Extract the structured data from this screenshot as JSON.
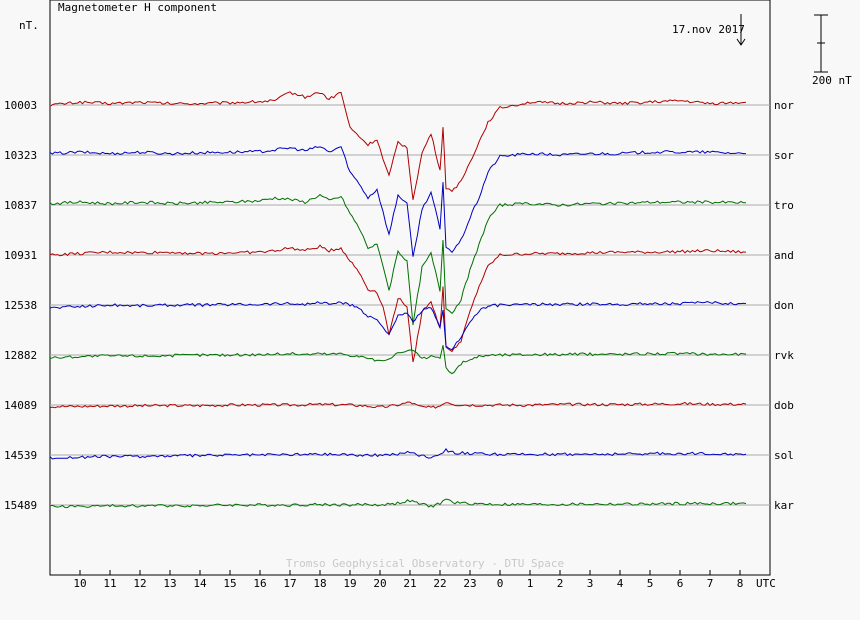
{
  "chart_data": {
    "type": "line",
    "title": "Magnetometer H component",
    "ylabel": "nT.",
    "xlabel": "UTC",
    "date": "17.nov 2017",
    "scale_label": "200 nT",
    "scale_nT": 200,
    "watermark": "Tromso Geophysical Observatory - DTU Space",
    "x_ticks": [
      "10",
      "11",
      "12",
      "13",
      "14",
      "15",
      "16",
      "17",
      "18",
      "19",
      "20",
      "21",
      "22",
      "23",
      "0",
      "1",
      "2",
      "3",
      "4",
      "5",
      "6",
      "7",
      "8"
    ],
    "grid": "horizontal baselines only",
    "series": [
      {
        "name": "nor",
        "baseline": "10003",
        "color": "#b00000",
        "x": [
          9,
          10,
          11,
          12,
          13,
          14,
          15,
          16,
          16.5,
          17,
          17.5,
          18,
          18.3,
          18.7,
          19,
          19.3,
          19.6,
          19.9,
          20.1,
          20.3,
          20.6,
          20.9,
          21.1,
          21.4,
          21.7,
          22,
          22.1,
          22.2,
          22.4,
          22.7,
          23,
          23.3,
          23.6,
          24,
          25,
          26,
          27,
          28,
          29,
          30,
          31,
          32.2
        ],
        "y": [
          0,
          10,
          5,
          10,
          5,
          5,
          8,
          12,
          15,
          45,
          28,
          45,
          20,
          45,
          -80,
          -110,
          -140,
          -120,
          -190,
          -250,
          -130,
          -150,
          -330,
          -170,
          -100,
          -230,
          -80,
          -290,
          -300,
          -270,
          -200,
          -130,
          -60,
          -10,
          10,
          5,
          10,
          5,
          10,
          15,
          5,
          10
        ]
      },
      {
        "name": "sor",
        "baseline": "10323",
        "color": "#0000c0",
        "x": [
          9,
          10,
          11,
          12,
          13,
          14,
          15,
          16,
          16.5,
          17,
          17.5,
          18,
          18.3,
          18.7,
          19,
          19.3,
          19.6,
          19.9,
          20.1,
          20.3,
          20.6,
          20.9,
          21.1,
          21.4,
          21.7,
          22,
          22.1,
          22.2,
          22.4,
          22.7,
          23,
          23.3,
          23.6,
          24,
          25,
          26,
          27,
          28,
          29,
          30,
          31,
          32.2
        ],
        "y": [
          5,
          10,
          5,
          10,
          5,
          8,
          10,
          12,
          18,
          25,
          15,
          30,
          10,
          30,
          -60,
          -100,
          -150,
          -120,
          -200,
          -280,
          -140,
          -170,
          -360,
          -190,
          -130,
          -260,
          -100,
          -320,
          -340,
          -300,
          -220,
          -150,
          -60,
          -5,
          5,
          0,
          5,
          5,
          10,
          10,
          10,
          5
        ]
      },
      {
        "name": "tro",
        "baseline": "10837",
        "color": "#007000",
        "x": [
          9,
          10,
          11,
          12,
          13,
          14,
          15,
          16,
          16.5,
          17,
          17.5,
          18,
          18.3,
          18.7,
          19,
          19.3,
          19.6,
          19.9,
          20.1,
          20.3,
          20.6,
          20.9,
          21.1,
          21.4,
          21.7,
          22,
          22.1,
          22.2,
          22.4,
          22.7,
          23,
          23.3,
          23.6,
          24,
          25,
          26,
          27,
          28,
          29,
          30,
          31,
          32.2
        ],
        "y": [
          5,
          10,
          5,
          10,
          5,
          8,
          10,
          15,
          25,
          20,
          10,
          35,
          15,
          30,
          -30,
          -80,
          -150,
          -140,
          -210,
          -300,
          -160,
          -200,
          -420,
          -220,
          -170,
          -300,
          -120,
          -360,
          -380,
          -330,
          -230,
          -140,
          -50,
          0,
          5,
          0,
          5,
          5,
          10,
          10,
          10,
          8
        ]
      },
      {
        "name": "and",
        "baseline": "10931",
        "color": "#b00000",
        "x": [
          9,
          10,
          11,
          12,
          13,
          14,
          15,
          16,
          16.5,
          17,
          17.5,
          18,
          18.3,
          18.7,
          19,
          19.3,
          19.6,
          19.9,
          20.1,
          20.3,
          20.6,
          20.9,
          21.1,
          21.4,
          21.7,
          22,
          22.1,
          22.2,
          22.4,
          22.7,
          23,
          23.3,
          23.6,
          24,
          25,
          26,
          27,
          28,
          29,
          30,
          31,
          32.2
        ],
        "y": [
          0,
          5,
          10,
          8,
          10,
          5,
          8,
          10,
          15,
          25,
          15,
          30,
          15,
          25,
          -20,
          -60,
          -120,
          -130,
          -180,
          -280,
          -150,
          -180,
          -380,
          -200,
          -160,
          -260,
          -110,
          -320,
          -340,
          -300,
          -200,
          -110,
          -40,
          0,
          5,
          5,
          8,
          10,
          10,
          12,
          15,
          10
        ]
      },
      {
        "name": "don",
        "baseline": "12538",
        "color": "#0000c0",
        "x": [
          9,
          10,
          11,
          12,
          13,
          14,
          15,
          16,
          16.5,
          17,
          17.5,
          18,
          18.3,
          18.7,
          19,
          19.3,
          19.6,
          19.9,
          20.1,
          20.3,
          20.6,
          20.9,
          21.1,
          21.4,
          21.7,
          22,
          22.1,
          22.2,
          22.4,
          22.7,
          23,
          23.3,
          23.6,
          24,
          25,
          26,
          27,
          28,
          29,
          30,
          31,
          32.2
        ],
        "y": [
          -10,
          -5,
          0,
          -2,
          0,
          0,
          2,
          3,
          5,
          5,
          3,
          8,
          5,
          8,
          0,
          -10,
          -40,
          -50,
          -80,
          -100,
          -40,
          -30,
          -60,
          -20,
          -10,
          -80,
          -20,
          -140,
          -160,
          -110,
          -60,
          -20,
          -5,
          0,
          2,
          2,
          3,
          3,
          5,
          5,
          8,
          5
        ]
      },
      {
        "name": "rvk",
        "baseline": "12882",
        "color": "#007000",
        "x": [
          9,
          10,
          11,
          12,
          13,
          14,
          15,
          16,
          16.5,
          17,
          17.5,
          18,
          18.3,
          18.7,
          19,
          19.3,
          19.6,
          19.9,
          20.1,
          20.3,
          20.6,
          20.9,
          21.1,
          21.4,
          21.7,
          22,
          22.1,
          22.2,
          22.4,
          22.7,
          23,
          23.3,
          23.6,
          24,
          25,
          26,
          27,
          28,
          29,
          30,
          31,
          32.2
        ],
        "y": [
          -10,
          -5,
          -3,
          -3,
          -2,
          0,
          0,
          2,
          3,
          5,
          2,
          5,
          3,
          5,
          0,
          -5,
          -10,
          -20,
          -25,
          -10,
          5,
          10,
          20,
          -15,
          -5,
          -10,
          30,
          -40,
          -70,
          -30,
          -15,
          -5,
          0,
          0,
          2,
          2,
          3,
          3,
          5,
          5,
          3,
          3
        ]
      },
      {
        "name": "dob",
        "baseline": "14089",
        "color": "#b00000",
        "x": [
          9,
          10,
          11,
          12,
          13,
          14,
          15,
          16,
          17,
          18,
          19,
          19.5,
          20,
          20.5,
          21,
          21.3,
          21.7,
          22,
          22.2,
          22.5,
          23,
          24,
          25,
          26,
          27,
          28,
          29,
          30,
          31,
          32.2
        ],
        "y": [
          -5,
          -5,
          -3,
          -3,
          -2,
          -2,
          0,
          0,
          0,
          2,
          0,
          -3,
          -8,
          -2,
          10,
          -5,
          -10,
          -3,
          12,
          2,
          0,
          0,
          0,
          2,
          2,
          2,
          3,
          5,
          3,
          3
        ]
      },
      {
        "name": "sol",
        "baseline": "14539",
        "color": "#0000c0",
        "x": [
          9,
          10,
          11,
          12,
          13,
          14,
          15,
          16,
          17,
          18,
          19,
          19.5,
          20,
          20.5,
          21,
          21.3,
          21.7,
          22,
          22.2,
          22.5,
          23,
          24,
          25,
          26,
          27,
          28,
          29,
          30,
          31,
          32.2
        ],
        "y": [
          -10,
          -8,
          -5,
          -5,
          -3,
          -2,
          0,
          0,
          2,
          3,
          2,
          -2,
          0,
          3,
          10,
          0,
          -8,
          5,
          18,
          8,
          5,
          2,
          2,
          3,
          3,
          3,
          5,
          5,
          5,
          3
        ]
      },
      {
        "name": "kar",
        "baseline": "15489",
        "color": "#007000",
        "x": [
          9,
          10,
          11,
          12,
          13,
          14,
          15,
          16,
          17,
          18,
          19,
          19.5,
          20,
          20.5,
          21,
          21.3,
          21.7,
          22,
          22.2,
          22.5,
          23,
          24,
          25,
          26,
          27,
          28,
          29,
          30,
          31,
          32.2
        ],
        "y": [
          -5,
          -5,
          -3,
          -3,
          -2,
          -2,
          0,
          0,
          0,
          2,
          0,
          2,
          0,
          5,
          15,
          5,
          -5,
          5,
          20,
          8,
          5,
          2,
          2,
          2,
          3,
          3,
          3,
          5,
          5,
          5
        ]
      }
    ]
  }
}
